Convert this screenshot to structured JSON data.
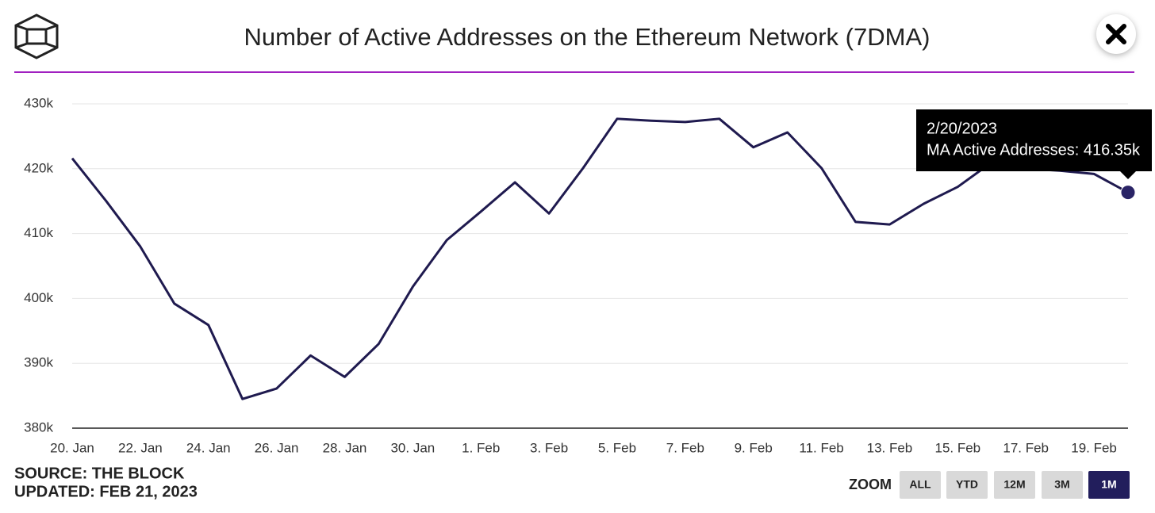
{
  "chart_data": {
    "type": "line",
    "title": "Number of Active Addresses on the Ethereum Network (7DMA)",
    "categories": [
      "20. Jan",
      null,
      "22. Jan",
      null,
      "24. Jan",
      null,
      "26. Jan",
      null,
      "28. Jan",
      null,
      "30. Jan",
      null,
      "1. Feb",
      null,
      "3. Feb",
      null,
      "5. Feb",
      null,
      "7. Feb",
      null,
      "9. Feb",
      null,
      "11. Feb",
      null,
      "13. Feb",
      null,
      "15. Feb",
      null,
      "17. Feb",
      null,
      "19. Feb",
      null
    ],
    "values": [
      421600,
      415000,
      408000,
      399200,
      395900,
      384500,
      386100,
      391200,
      387900,
      393000,
      401800,
      409000,
      413400,
      417900,
      413100,
      420100,
      427700,
      427400,
      427200,
      427700,
      423300,
      425600,
      420100,
      411800,
      411400,
      414600,
      417200,
      421000,
      420000,
      419700,
      419200,
      416350
    ],
    "color": "#1f1a4f",
    "ylim": [
      380000,
      430000
    ],
    "yticks": [
      {
        "value": 380000,
        "label": "380k"
      },
      {
        "value": 390000,
        "label": "390k"
      },
      {
        "value": 400000,
        "label": "400k"
      },
      {
        "value": 410000,
        "label": "410k"
      },
      {
        "value": 420000,
        "label": "420k"
      },
      {
        "value": 430000,
        "label": "430k"
      }
    ],
    "grid": true,
    "tooltip": {
      "date": "2/20/2023",
      "text": "MA Active Addresses: 416.35k"
    },
    "source": "SOURCE: THE BLOCK",
    "updated": "UPDATED: FEB 21, 2023",
    "zoom": {
      "label": "ZOOM",
      "buttons": [
        "ALL",
        "YTD",
        "12M",
        "3M",
        "1M"
      ],
      "active": 4
    }
  }
}
